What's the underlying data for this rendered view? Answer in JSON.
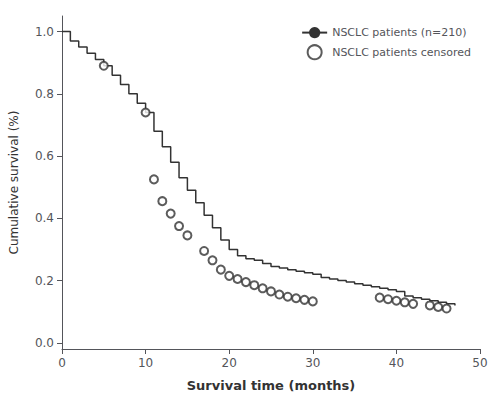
{
  "chart_data": {
    "type": "line",
    "xlabel": "Survival time (months)",
    "ylabel": "Cumulative survival (%)",
    "xlim": [
      0,
      50
    ],
    "ylim": [
      -0.02,
      1.05
    ],
    "xticks": [
      0,
      10,
      20,
      30,
      40,
      50
    ],
    "yticks": [
      {
        "value": 0.0,
        "label": "0.0"
      },
      0.2,
      0.4,
      0.6,
      0.8,
      {
        "value": 1.0,
        "label": "1.0"
      }
    ],
    "grid": false,
    "legend": "upper right",
    "series": [
      {
        "name": "NSCLC patients (n=210)",
        "type": "line",
        "line_style": "step",
        "color": "#333333",
        "x": [
          0,
          1,
          2,
          3,
          4,
          5,
          6,
          7,
          8,
          9,
          10,
          11,
          12,
          13,
          14,
          15,
          16,
          17,
          18,
          19,
          20,
          21,
          22,
          23,
          24,
          25,
          26,
          27,
          28,
          29,
          30,
          31,
          32,
          33,
          34,
          35,
          36,
          37,
          38,
          39,
          40,
          41,
          42,
          43,
          44,
          45,
          46,
          47
        ],
        "values": [
          1.0,
          0.97,
          0.95,
          0.93,
          0.91,
          0.89,
          0.86,
          0.83,
          0.8,
          0.77,
          0.74,
          0.68,
          0.63,
          0.58,
          0.53,
          0.49,
          0.45,
          0.41,
          0.37,
          0.33,
          0.3,
          0.28,
          0.27,
          0.265,
          0.255,
          0.245,
          0.24,
          0.235,
          0.23,
          0.225,
          0.22,
          0.21,
          0.205,
          0.2,
          0.195,
          0.19,
          0.185,
          0.18,
          0.175,
          0.17,
          0.165,
          0.15,
          0.145,
          0.14,
          0.135,
          0.13,
          0.125,
          0.12
        ]
      },
      {
        "name": "NSCLC patients censored",
        "type": "scatter",
        "marker": "open_circle",
        "color": "#333333",
        "x": [
          5,
          10,
          11,
          12,
          13,
          14,
          15,
          17,
          18,
          19,
          20,
          21,
          22,
          23,
          24,
          25,
          26,
          27,
          28,
          29,
          30,
          38,
          39,
          40,
          41,
          42,
          44,
          45,
          46
        ],
        "values": [
          0.89,
          0.74,
          0.525,
          0.455,
          0.415,
          0.375,
          0.345,
          0.295,
          0.265,
          0.235,
          0.215,
          0.205,
          0.195,
          0.185,
          0.175,
          0.165,
          0.155,
          0.148,
          0.143,
          0.138,
          0.133,
          0.145,
          0.14,
          0.135,
          0.13,
          0.125,
          0.12,
          0.115,
          0.11
        ]
      }
    ]
  }
}
